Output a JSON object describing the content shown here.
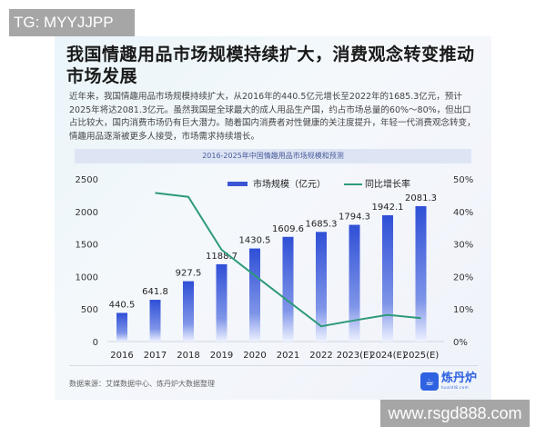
{
  "watermarks": {
    "top_left": "TG: MYYJJPP",
    "bottom_right": "www.rsgd888.com"
  },
  "article": {
    "title": "我国情趣用品市场规模持续扩大，消费观念转变推动市场发展",
    "paragraph": "近年来，我国情趣用品市场规模持续扩大，从2016年的440.5亿元增长至2022年的1685.3亿元，预计2025年将达2081.3亿元。虽然我国是全球最大的成人用品生产国，约占市场总量的60%～80%，但出口占比较大，国内消费市场仍有巨大潜力。随着国内消费者对性健康的关注度提升，年轻一代消费观念转变，情趣用品逐渐被更多人接受，市场需求持续增长。",
    "source": "数据来源：艾媒数据中心、炼丹炉大数据整理"
  },
  "logo": {
    "name": "炼丹炉",
    "url": "hualdl8.com",
    "brand_color": "#2f62e0"
  },
  "colors": {
    "bar_top": "#2f4fd6",
    "bar_bottom": "#e8eeff",
    "line": "#2e9a7a",
    "banner_bg": "#dde5f5"
  },
  "chart_data": {
    "type": "bar",
    "title": "2016-2025年中国情趣用品市场规模和预测",
    "categories": [
      "2016",
      "2017",
      "2018",
      "2019",
      "2020",
      "2021",
      "2022",
      "2023(E)",
      "2024(E)",
      "2025(E)"
    ],
    "series": [
      {
        "name": "市场规模（亿元）",
        "type": "bar",
        "axis": "left",
        "values": [
          440.5,
          641.8,
          927.5,
          1188.7,
          1430.5,
          1609.6,
          1685.3,
          1794.3,
          1942.1,
          2081.3
        ],
        "labels": [
          "440.5",
          "641.8",
          "927.5",
          "1188.7",
          "1430.5",
          "1609.6",
          "1685.3",
          "1794.3",
          "1942.1",
          "2081.3"
        ]
      },
      {
        "name": "同比增长率",
        "type": "line",
        "axis": "right",
        "values": [
          null,
          45.7,
          44.5,
          28.2,
          20.3,
          12.5,
          4.7,
          6.5,
          8.2,
          7.2
        ]
      }
    ],
    "left_axis": {
      "ticks": [
        "0",
        "500",
        "1000",
        "1500",
        "2000",
        "2500"
      ],
      "ylim": [
        0,
        2500
      ]
    },
    "right_axis": {
      "ticks": [
        "0%",
        "10%",
        "20%",
        "30%",
        "40%",
        "50%"
      ],
      "ylim": [
        0,
        50
      ]
    },
    "legend_position": "top-center",
    "grid": false,
    "xlabel": "",
    "ylabel": ""
  }
}
